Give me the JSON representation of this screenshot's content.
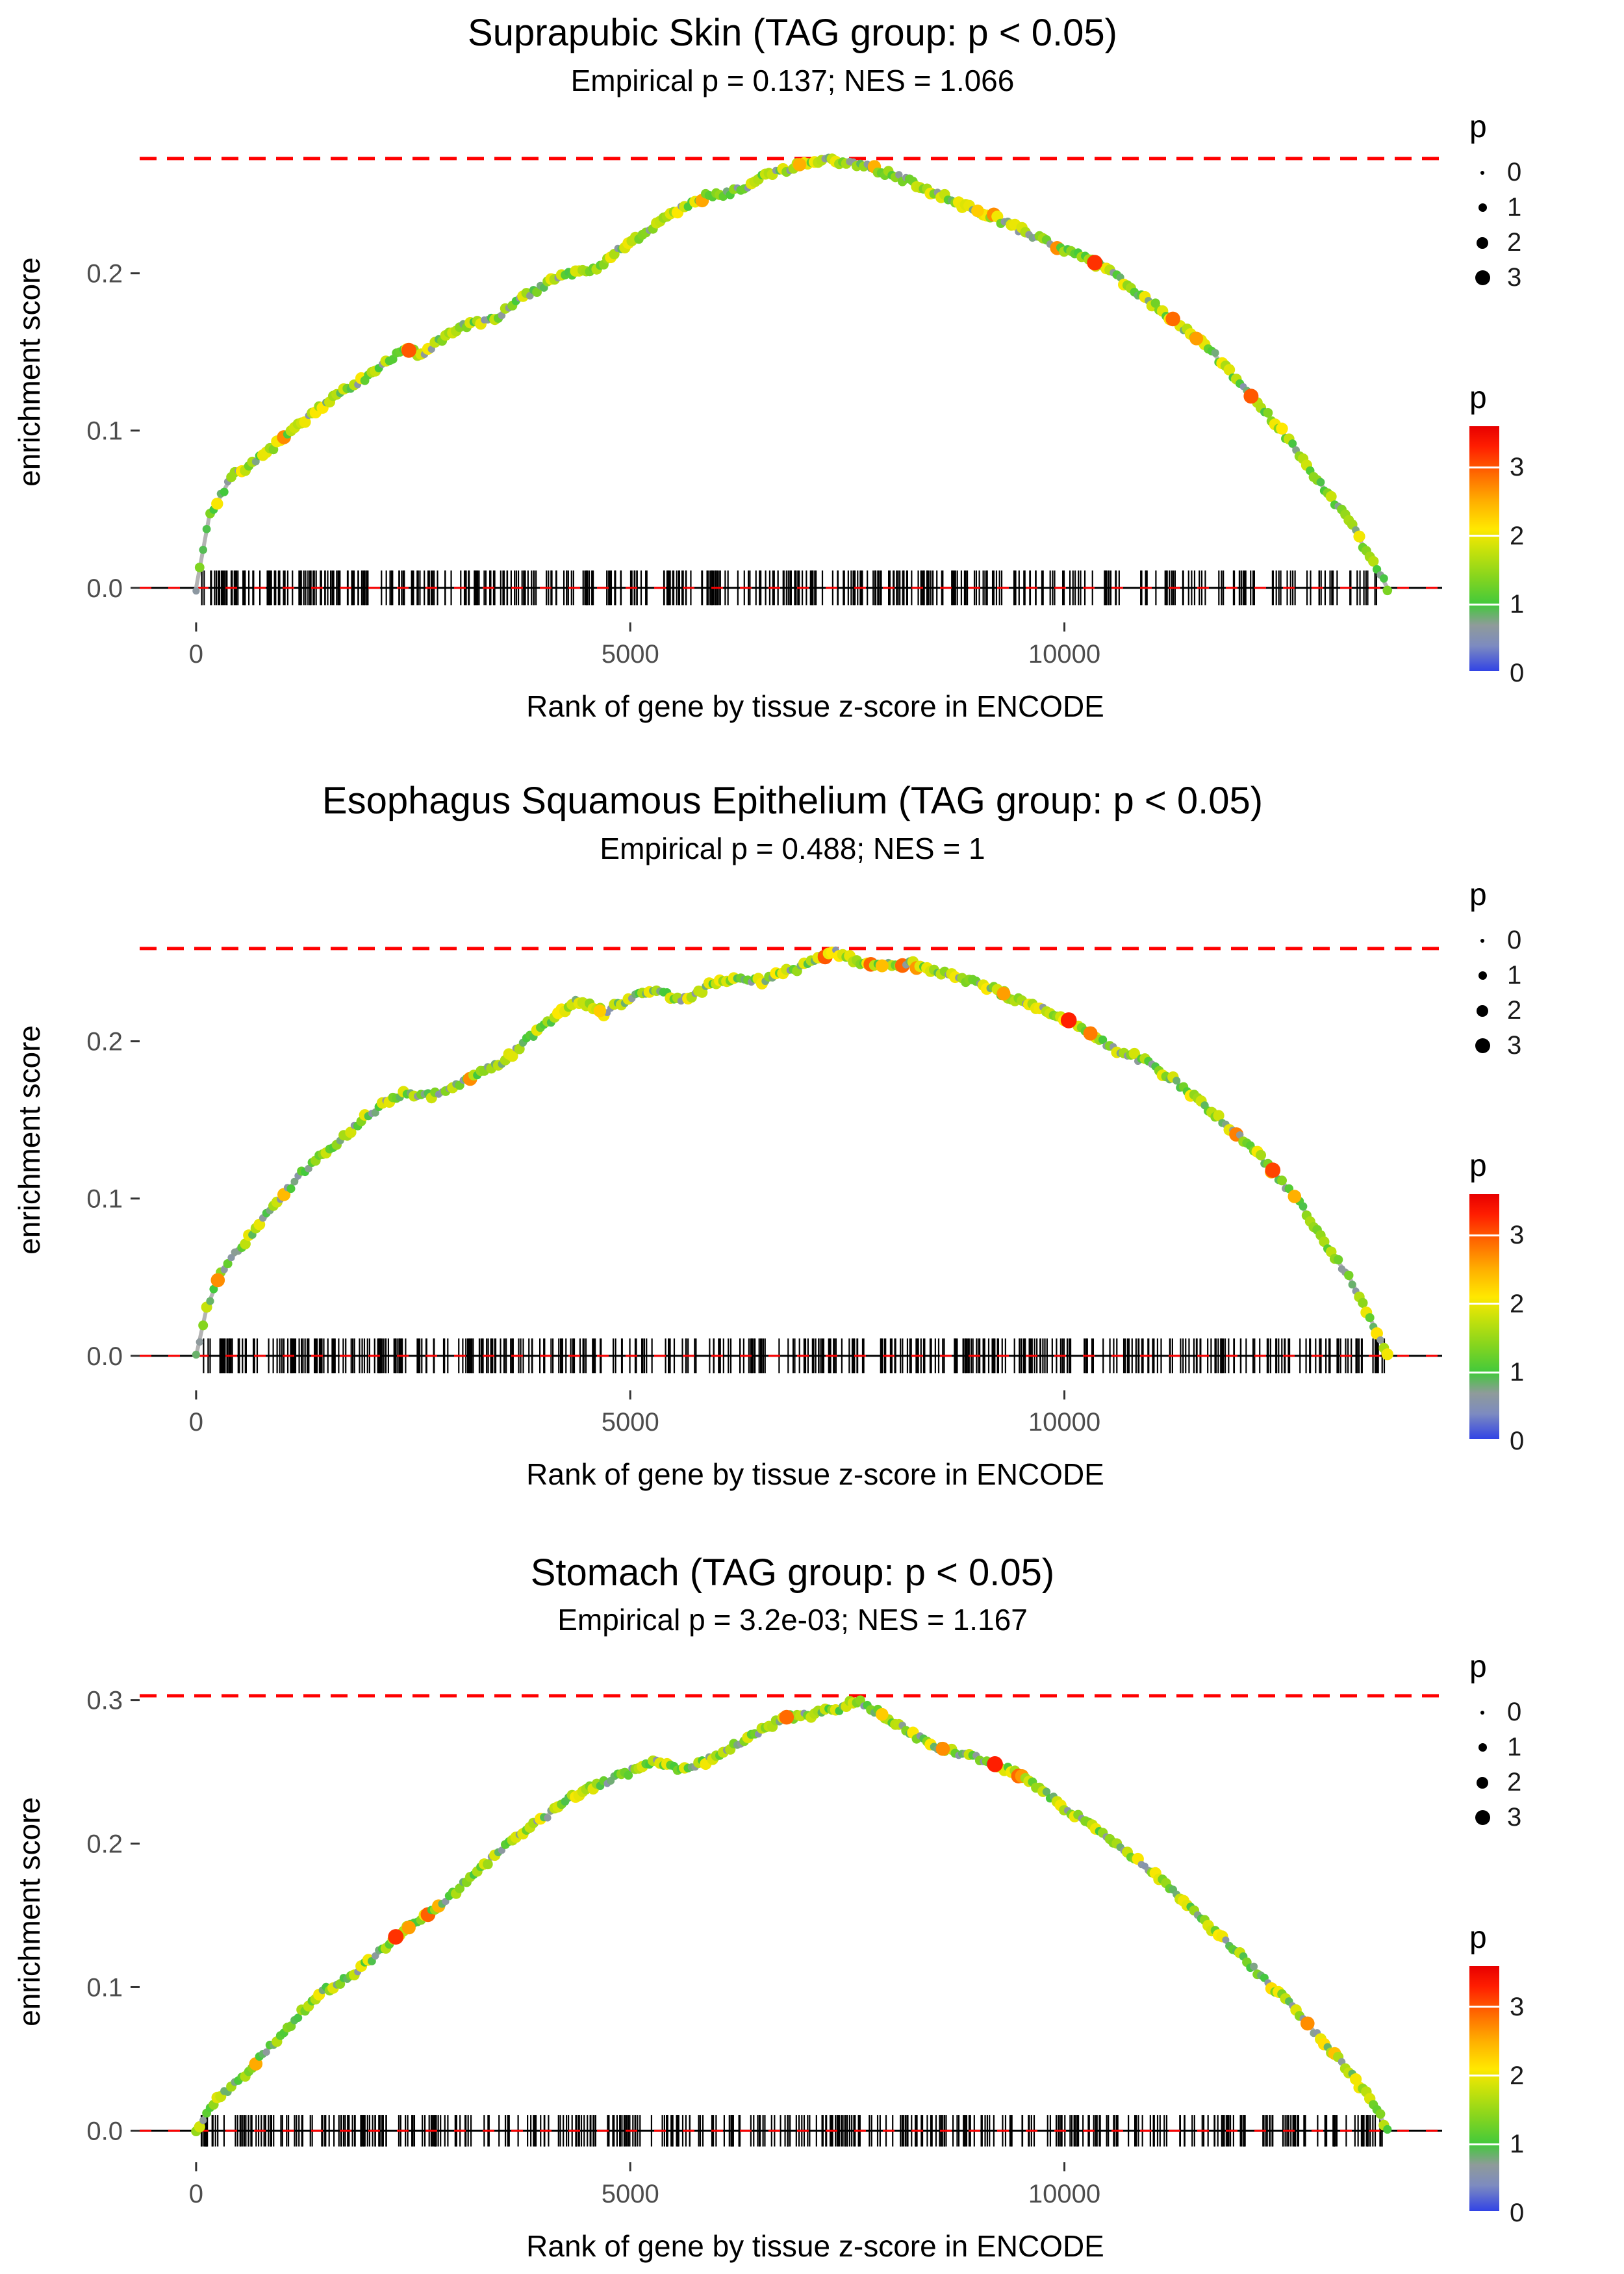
{
  "page": {
    "background": "#ffffff"
  },
  "color_scale": {
    "max": 3.6,
    "stops": [
      [
        0,
        "#2c3ee8"
      ],
      [
        0.4,
        "#7d8bc0"
      ],
      [
        0.7,
        "#8f9b9a"
      ],
      [
        1,
        "#42c93c"
      ],
      [
        1.4,
        "#86d51e"
      ],
      [
        1.8,
        "#c9e20a"
      ],
      [
        2.1,
        "#ffe800"
      ],
      [
        2.5,
        "#ffb000"
      ],
      [
        2.9,
        "#ff6a00"
      ],
      [
        3.3,
        "#ff1e00"
      ],
      [
        3.6,
        "#e80000"
      ]
    ]
  },
  "chart_data": [
    {
      "type": "line",
      "title": "Suprapubic Skin (TAG group: p < 0.05)",
      "subtitle": "Empirical p = 0.137; NES = 1.066",
      "xlabel": "Rank of gene by tissue z-score in ENCODE",
      "ylabel": "enrichment score",
      "x_ticks": [
        0,
        5000,
        10000
      ],
      "y_ticks": [
        0,
        0.1,
        0.2
      ],
      "xlim": [
        -650,
        14350
      ],
      "ylim": [
        -0.022,
        0.292
      ],
      "dashed_line_y": 0.273,
      "dashed_line_color": "#ff0000",
      "curve": [
        [
          0,
          0
        ],
        [
          150,
          0.045
        ],
        [
          400,
          0.07
        ],
        [
          800,
          0.085
        ],
        [
          1200,
          0.105
        ],
        [
          1600,
          0.122
        ],
        [
          2000,
          0.135
        ],
        [
          2400,
          0.152
        ],
        [
          2600,
          0.148
        ],
        [
          3000,
          0.165
        ],
        [
          3400,
          0.17
        ],
        [
          3800,
          0.186
        ],
        [
          4200,
          0.198
        ],
        [
          4600,
          0.203
        ],
        [
          5000,
          0.22
        ],
        [
          5400,
          0.235
        ],
        [
          5800,
          0.248
        ],
        [
          6200,
          0.252
        ],
        [
          6600,
          0.263
        ],
        [
          7000,
          0.27
        ],
        [
          7300,
          0.272
        ],
        [
          7700,
          0.268
        ],
        [
          8100,
          0.261
        ],
        [
          8500,
          0.251
        ],
        [
          8900,
          0.242
        ],
        [
          9300,
          0.233
        ],
        [
          9700,
          0.222
        ],
        [
          10100,
          0.213
        ],
        [
          10500,
          0.203
        ],
        [
          10900,
          0.185
        ],
        [
          11300,
          0.169
        ],
        [
          11700,
          0.15
        ],
        [
          12100,
          0.125
        ],
        [
          12500,
          0.1
        ],
        [
          12900,
          0.07
        ],
        [
          13300,
          0.04
        ],
        [
          13600,
          0.012
        ],
        [
          13720,
          0
        ]
      ],
      "rug": {
        "count": 460,
        "xmin": 60,
        "xmax": 13700,
        "seed": 101
      },
      "points": {
        "n": 340,
        "seed": 7
      },
      "highlights": [
        [
          2450,
          3.0
        ],
        [
          6950,
          2.5
        ],
        [
          9000,
          2.3
        ],
        [
          10350,
          3.2
        ],
        [
          11250,
          2.9
        ],
        [
          11520,
          2.6
        ],
        [
          12150,
          3.0
        ]
      ],
      "size_legend": {
        "title": "p",
        "labels": [
          "0",
          "1",
          "2",
          "3"
        ]
      },
      "color_legend": {
        "title": "p",
        "ticks": [
          "0",
          "1",
          "2",
          "3"
        ]
      }
    },
    {
      "type": "line",
      "title": "Esophagus Squamous Epithelium (TAG group: p < 0.05)",
      "subtitle": "Empirical p = 0.488; NES = 1",
      "xlabel": "Rank of gene by tissue z-score in ENCODE",
      "ylabel": "enrichment score",
      "x_ticks": [
        0,
        5000,
        10000
      ],
      "y_ticks": [
        0,
        0.1,
        0.2
      ],
      "xlim": [
        -650,
        14350
      ],
      "ylim": [
        -0.022,
        0.292
      ],
      "dashed_line_y": 0.259,
      "dashed_line_color": "#ff0000",
      "curve": [
        [
          0,
          0
        ],
        [
          120,
          0.03
        ],
        [
          300,
          0.055
        ],
        [
          600,
          0.075
        ],
        [
          900,
          0.095
        ],
        [
          1200,
          0.115
        ],
        [
          1500,
          0.13
        ],
        [
          1800,
          0.145
        ],
        [
          2100,
          0.158
        ],
        [
          2400,
          0.168
        ],
        [
          2700,
          0.165
        ],
        [
          3000,
          0.172
        ],
        [
          3300,
          0.18
        ],
        [
          3600,
          0.19
        ],
        [
          3900,
          0.205
        ],
        [
          4200,
          0.218
        ],
        [
          4400,
          0.226
        ],
        [
          4700,
          0.218
        ],
        [
          5000,
          0.228
        ],
        [
          5300,
          0.232
        ],
        [
          5600,
          0.226
        ],
        [
          5900,
          0.235
        ],
        [
          6200,
          0.24
        ],
        [
          6500,
          0.238
        ],
        [
          6800,
          0.244
        ],
        [
          7100,
          0.25
        ],
        [
          7350,
          0.258
        ],
        [
          7600,
          0.25
        ],
        [
          7900,
          0.248
        ],
        [
          8200,
          0.25
        ],
        [
          8500,
          0.245
        ],
        [
          8800,
          0.24
        ],
        [
          9100,
          0.235
        ],
        [
          9400,
          0.228
        ],
        [
          9700,
          0.222
        ],
        [
          10000,
          0.215
        ],
        [
          10300,
          0.205
        ],
        [
          10600,
          0.195
        ],
        [
          10900,
          0.188
        ],
        [
          11200,
          0.178
        ],
        [
          11500,
          0.165
        ],
        [
          11800,
          0.15
        ],
        [
          12100,
          0.135
        ],
        [
          12400,
          0.118
        ],
        [
          12700,
          0.098
        ],
        [
          13000,
          0.072
        ],
        [
          13300,
          0.048
        ],
        [
          13600,
          0.015
        ],
        [
          13720,
          0
        ]
      ],
      "rug": {
        "count": 440,
        "xmin": 60,
        "xmax": 13700,
        "seed": 202
      },
      "points": {
        "n": 340,
        "seed": 17
      },
      "highlights": [
        [
          250,
          2.7
        ],
        [
          4650,
          2.3
        ],
        [
          7900,
          2.4
        ],
        [
          9300,
          2.6
        ],
        [
          10050,
          3.3
        ],
        [
          10300,
          2.8
        ],
        [
          12400,
          3.1
        ],
        [
          12650,
          2.5
        ]
      ],
      "size_legend": {
        "title": "p",
        "labels": [
          "0",
          "1",
          "2",
          "3"
        ]
      },
      "color_legend": {
        "title": "p",
        "ticks": [
          "0",
          "1",
          "2",
          "3"
        ]
      }
    },
    {
      "type": "line",
      "title": "Stomach (TAG group: p < 0.05)",
      "subtitle": "Empirical p = 3.2e-03; NES = 1.167",
      "xlabel": "Rank of gene by tissue z-score in ENCODE",
      "ylabel": "enrichment score",
      "x_ticks": [
        0,
        5000,
        10000
      ],
      "y_ticks": [
        0,
        0.1,
        0.2,
        0.3
      ],
      "xlim": [
        -650,
        14350
      ],
      "ylim": [
        -0.022,
        0.322
      ],
      "dashed_line_y": 0.303,
      "dashed_line_color": "#ff0000",
      "curve": [
        [
          0,
          0
        ],
        [
          200,
          0.02
        ],
        [
          500,
          0.035
        ],
        [
          800,
          0.055
        ],
        [
          1100,
          0.075
        ],
        [
          1400,
          0.095
        ],
        [
          1700,
          0.105
        ],
        [
          2000,
          0.118
        ],
        [
          2300,
          0.135
        ],
        [
          2600,
          0.148
        ],
        [
          2900,
          0.162
        ],
        [
          3200,
          0.178
        ],
        [
          3500,
          0.195
        ],
        [
          3800,
          0.21
        ],
        [
          4100,
          0.222
        ],
        [
          4400,
          0.235
        ],
        [
          4700,
          0.243
        ],
        [
          5000,
          0.25
        ],
        [
          5300,
          0.258
        ],
        [
          5600,
          0.252
        ],
        [
          5900,
          0.258
        ],
        [
          6200,
          0.268
        ],
        [
          6500,
          0.278
        ],
        [
          6800,
          0.288
        ],
        [
          7100,
          0.29
        ],
        [
          7400,
          0.294
        ],
        [
          7600,
          0.3
        ],
        [
          7900,
          0.29
        ],
        [
          8200,
          0.278
        ],
        [
          8500,
          0.268
        ],
        [
          8800,
          0.262
        ],
        [
          9100,
          0.258
        ],
        [
          9400,
          0.25
        ],
        [
          9700,
          0.24
        ],
        [
          10000,
          0.225
        ],
        [
          10300,
          0.212
        ],
        [
          10600,
          0.2
        ],
        [
          10900,
          0.185
        ],
        [
          11200,
          0.17
        ],
        [
          11500,
          0.152
        ],
        [
          11800,
          0.135
        ],
        [
          12100,
          0.118
        ],
        [
          12400,
          0.1
        ],
        [
          12700,
          0.082
        ],
        [
          13000,
          0.06
        ],
        [
          13300,
          0.04
        ],
        [
          13600,
          0.015
        ],
        [
          13720,
          0
        ]
      ],
      "rug": {
        "count": 440,
        "xmin": 60,
        "xmax": 13700,
        "seed": 303
      },
      "points": {
        "n": 340,
        "seed": 27
      },
      "highlights": [
        [
          2300,
          3.2
        ],
        [
          2450,
          2.6
        ],
        [
          6800,
          2.9
        ],
        [
          7900,
          2.3
        ],
        [
          8600,
          2.7
        ],
        [
          9200,
          3.3
        ],
        [
          12800,
          2.7
        ]
      ],
      "size_legend": {
        "title": "p",
        "labels": [
          "0",
          "1",
          "2",
          "3"
        ]
      },
      "color_legend": {
        "title": "p",
        "ticks": [
          "0",
          "1",
          "2",
          "3"
        ]
      }
    }
  ]
}
